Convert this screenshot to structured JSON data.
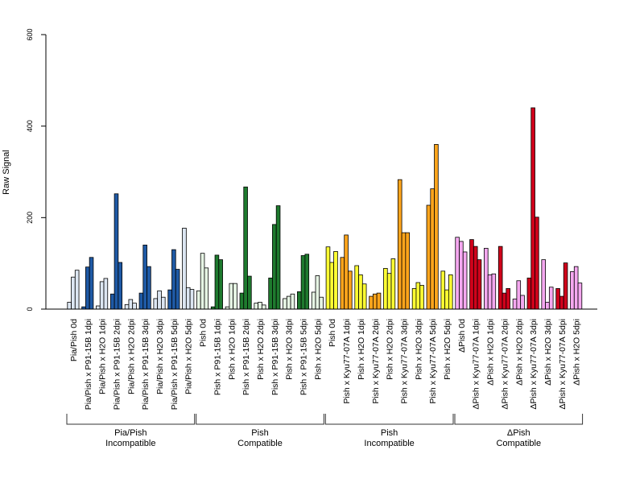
{
  "chart_data": {
    "type": "bar",
    "ylabel": "Raw Signal",
    "ylim": [
      0,
      600
    ],
    "yticks": [
      "0",
      "200",
      "400",
      "600"
    ],
    "bars_per_condition": 3,
    "categories": [
      "Pia/Pish 0d",
      "Pia/Pish x P91-15B 1dpi",
      "Pia/Pish x H2O 1dpi",
      "Pia/Pish x P91-15B 2dpi",
      "Pia/Pish x H2O 2dpi",
      "Pia/Pish x P91-15B 3dpi",
      "Pia/Pish x H2O 3dpi",
      "Pia/Pish x P91-15B 5dpi",
      "Pia/Pish x H2O 5dpi",
      "Pish 0d",
      "Pish x P91-15B 1dpi",
      "Pish x H2O 1dpi",
      "Pish x P91-15B 2dpi",
      "Pish x H2O 2dpi",
      "Pish x P91-15B 3dpi",
      "Pish x H2O 3dpi",
      "Pish x P91-15B 5dpi",
      "Pish x H2O 5dpi",
      "Pish 0d",
      "Pish x Kyu77-07A 1dpi",
      "Pish x H2O 1dpi",
      "Pish x Kyu77-07A 2dpi",
      "Pish x H2O 2dpi",
      "Pish x Kyu77-07A 3dpi",
      "Pish x H2O 3dpi",
      "Pish x Kyu77-07A 5dpi",
      "Pish x H2O 5dpi",
      "ΔPish 0d",
      "ΔPish x Kyu77-07A 1dpi",
      "ΔPish x H2O 1dpi",
      "ΔPish x Kyu77-07A 2dpi",
      "ΔPish x H2O 2dpi",
      "ΔPish x Kyu77-07A 3dpi",
      "ΔPish x H2O 3dpi",
      "ΔPish x Kyu77-07A 5dpi",
      "ΔPish x H2O 5dpi"
    ],
    "bar_colors": [
      "#dce6f2",
      "#1f5aa6",
      "#dce6f2",
      "#1f5aa6",
      "#dce6f2",
      "#1f5aa6",
      "#dce6f2",
      "#1f5aa6",
      "#dce6f2",
      "#e6f4e4",
      "#1e7a2e",
      "#e6f4e4",
      "#1e7a2e",
      "#e6f4e4",
      "#1e7a2e",
      "#e6f4e4",
      "#1e7a2e",
      "#e6f4e4",
      "#ffff33",
      "#ffa51c",
      "#ffff33",
      "#ffa51c",
      "#ffff33",
      "#ffa51c",
      "#ffff33",
      "#ffa51c",
      "#ffff33",
      "#f5a8f0",
      "#d0021b",
      "#f5a8f0",
      "#d0021b",
      "#f5a8f0",
      "#d0021b",
      "#f5a8f0",
      "#d0021b",
      "#f5a8f0"
    ],
    "values": [
      [
        15,
        70,
        85
      ],
      [
        5,
        92,
        113
      ],
      [
        7,
        60,
        67
      ],
      [
        33,
        252,
        102
      ],
      [
        10,
        21,
        13
      ],
      [
        35,
        140,
        93
      ],
      [
        23,
        40,
        26
      ],
      [
        42,
        130,
        87
      ],
      [
        177,
        47,
        43
      ],
      [
        40,
        122,
        90
      ],
      [
        5,
        118,
        108
      ],
      [
        5,
        56,
        56
      ],
      [
        35,
        267,
        72
      ],
      [
        13,
        15,
        9
      ],
      [
        68,
        185,
        226
      ],
      [
        23,
        28,
        33
      ],
      [
        38,
        117,
        120
      ],
      [
        37,
        73,
        26
      ],
      [
        136,
        102,
        126
      ],
      [
        113,
        162,
        83
      ],
      [
        95,
        75,
        55
      ],
      [
        28,
        33,
        35
      ],
      [
        89,
        78,
        110
      ],
      [
        283,
        167,
        167
      ],
      [
        45,
        58,
        52
      ],
      [
        227,
        263,
        360
      ],
      [
        83,
        42,
        75
      ],
      [
        157,
        148,
        125
      ],
      [
        152,
        137,
        108
      ],
      [
        133,
        75,
        77
      ],
      [
        137,
        35,
        45
      ],
      [
        22,
        62,
        30
      ],
      [
        68,
        440,
        201
      ],
      [
        108,
        15,
        48
      ],
      [
        45,
        28,
        101
      ],
      [
        82,
        93,
        57
      ]
    ],
    "groups": [
      {
        "line1": "Pia/Pish",
        "line2": "Incompatible",
        "start": 0,
        "end": 8
      },
      {
        "line1": "Pish",
        "line2": "Compatible",
        "start": 9,
        "end": 17
      },
      {
        "line1": "Pish",
        "line2": "Incompatible",
        "start": 18,
        "end": 26
      },
      {
        "line1": "ΔPish",
        "line2": "Compatible",
        "start": 27,
        "end": 35
      }
    ]
  }
}
